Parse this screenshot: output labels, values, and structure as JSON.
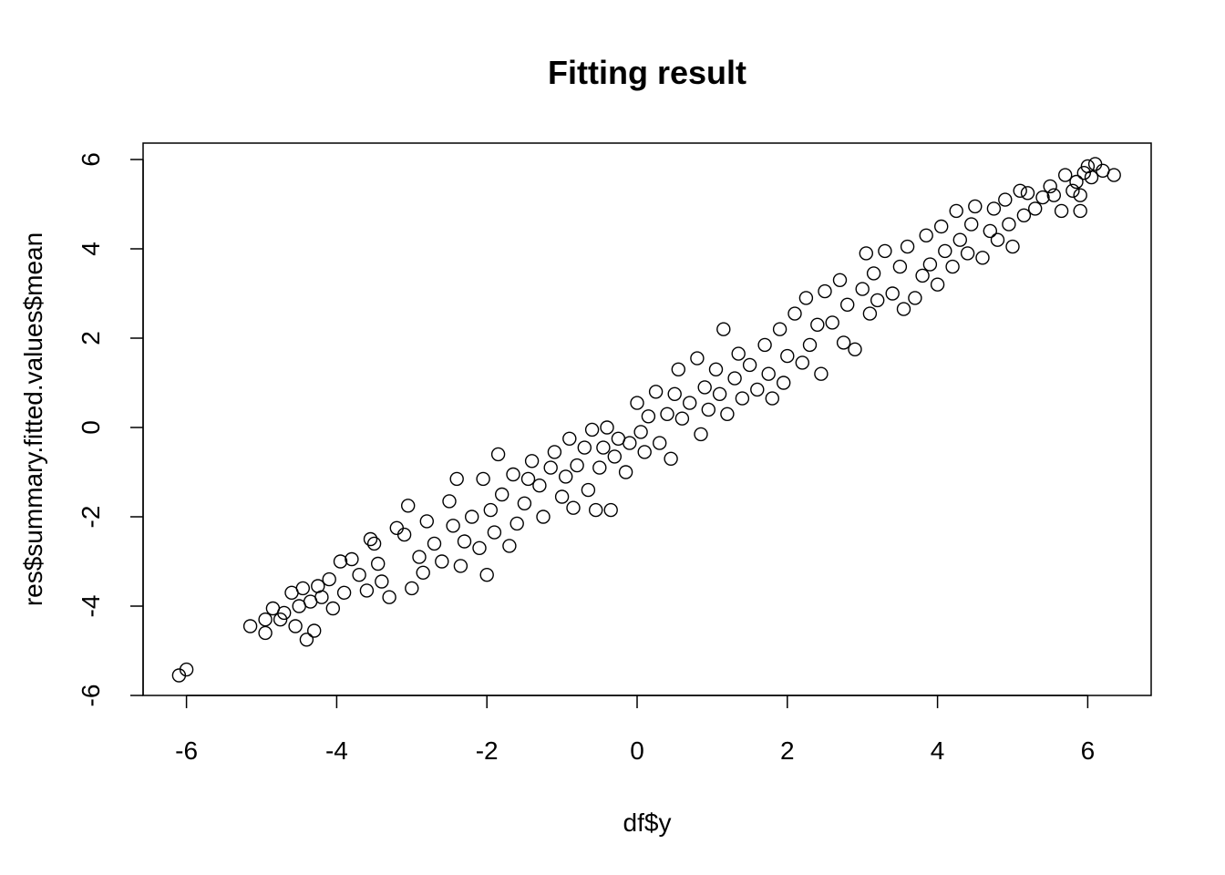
{
  "chart_data": {
    "type": "scatter",
    "title": "Fitting result",
    "xlabel": "df$y",
    "ylabel": "res$summary.fitted.values$mean",
    "xlim": [
      -6.5,
      6.9
    ],
    "ylim": [
      -6.0,
      6.4
    ],
    "xticks": [
      -6,
      -4,
      -2,
      0,
      2,
      4,
      6
    ],
    "yticks": [
      -6,
      -4,
      -2,
      0,
      2,
      4,
      6
    ],
    "xtick_labels": [
      "-6",
      "-4",
      "-2",
      "0",
      "2",
      "4",
      "6"
    ],
    "ytick_labels": [
      "-6",
      "-4",
      "-2",
      "0",
      "2",
      "4",
      "6"
    ],
    "grid": false,
    "legend": "none",
    "marker": "open-circle",
    "color": "#000000",
    "series": [
      {
        "points": [
          [
            -6.1,
            -5.55
          ],
          [
            -6.0,
            -5.42
          ],
          [
            -5.15,
            -4.45
          ],
          [
            -4.95,
            -4.6
          ],
          [
            -4.95,
            -4.3
          ],
          [
            -4.85,
            -4.05
          ],
          [
            -4.75,
            -4.3
          ],
          [
            -4.7,
            -4.15
          ],
          [
            -4.6,
            -3.7
          ],
          [
            -4.55,
            -4.45
          ],
          [
            -4.5,
            -4.0
          ],
          [
            -4.45,
            -3.6
          ],
          [
            -4.4,
            -4.75
          ],
          [
            -4.35,
            -3.9
          ],
          [
            -4.3,
            -4.55
          ],
          [
            -4.25,
            -3.55
          ],
          [
            -4.2,
            -3.8
          ],
          [
            -4.1,
            -3.4
          ],
          [
            -4.05,
            -4.05
          ],
          [
            -3.95,
            -3.0
          ],
          [
            -3.9,
            -3.7
          ],
          [
            -3.8,
            -2.95
          ],
          [
            -3.7,
            -3.3
          ],
          [
            -3.6,
            -3.65
          ],
          [
            -3.55,
            -2.5
          ],
          [
            -3.5,
            -2.6
          ],
          [
            -3.45,
            -3.05
          ],
          [
            -3.4,
            -3.45
          ],
          [
            -3.3,
            -3.8
          ],
          [
            -3.2,
            -2.25
          ],
          [
            -3.1,
            -2.4
          ],
          [
            -3.05,
            -1.75
          ],
          [
            -3.0,
            -3.6
          ],
          [
            -2.9,
            -2.9
          ],
          [
            -2.85,
            -3.25
          ],
          [
            -2.8,
            -2.1
          ],
          [
            -2.7,
            -2.6
          ],
          [
            -2.6,
            -3.0
          ],
          [
            -2.5,
            -1.65
          ],
          [
            -2.45,
            -2.2
          ],
          [
            -2.4,
            -1.15
          ],
          [
            -2.35,
            -3.1
          ],
          [
            -2.3,
            -2.55
          ],
          [
            -2.2,
            -2.0
          ],
          [
            -2.1,
            -2.7
          ],
          [
            -2.05,
            -1.15
          ],
          [
            -2.0,
            -3.3
          ],
          [
            -1.95,
            -1.85
          ],
          [
            -1.9,
            -2.35
          ],
          [
            -1.85,
            -0.6
          ],
          [
            -1.8,
            -1.5
          ],
          [
            -1.7,
            -2.65
          ],
          [
            -1.65,
            -1.05
          ],
          [
            -1.6,
            -2.15
          ],
          [
            -1.5,
            -1.7
          ],
          [
            -1.45,
            -1.15
          ],
          [
            -1.4,
            -0.75
          ],
          [
            -1.3,
            -1.3
          ],
          [
            -1.25,
            -2.0
          ],
          [
            -1.15,
            -0.9
          ],
          [
            -1.1,
            -0.55
          ],
          [
            -1.0,
            -1.55
          ],
          [
            -0.95,
            -1.1
          ],
          [
            -0.9,
            -0.25
          ],
          [
            -0.85,
            -1.8
          ],
          [
            -0.8,
            -0.85
          ],
          [
            -0.7,
            -0.45
          ],
          [
            -0.65,
            -1.4
          ],
          [
            -0.6,
            -0.05
          ],
          [
            -0.55,
            -1.85
          ],
          [
            -0.5,
            -0.9
          ],
          [
            -0.45,
            -0.45
          ],
          [
            -0.4,
            -0.0
          ],
          [
            -0.35,
            -1.85
          ],
          [
            -0.3,
            -0.65
          ],
          [
            -0.25,
            -0.25
          ],
          [
            -0.15,
            -1.0
          ],
          [
            -0.1,
            -0.35
          ],
          [
            0.0,
            0.55
          ],
          [
            0.05,
            -0.1
          ],
          [
            0.1,
            -0.55
          ],
          [
            0.15,
            0.25
          ],
          [
            0.25,
            0.8
          ],
          [
            0.3,
            -0.35
          ],
          [
            0.4,
            0.3
          ],
          [
            0.45,
            -0.7
          ],
          [
            0.5,
            0.75
          ],
          [
            0.55,
            1.3
          ],
          [
            0.6,
            0.2
          ],
          [
            0.7,
            0.55
          ],
          [
            0.8,
            1.55
          ],
          [
            0.85,
            -0.15
          ],
          [
            0.9,
            0.9
          ],
          [
            0.95,
            0.4
          ],
          [
            1.05,
            1.3
          ],
          [
            1.1,
            0.75
          ],
          [
            1.15,
            2.2
          ],
          [
            1.2,
            0.3
          ],
          [
            1.3,
            1.1
          ],
          [
            1.35,
            1.65
          ],
          [
            1.4,
            0.65
          ],
          [
            1.5,
            1.4
          ],
          [
            1.6,
            0.85
          ],
          [
            1.7,
            1.85
          ],
          [
            1.75,
            1.2
          ],
          [
            1.8,
            0.65
          ],
          [
            1.9,
            2.2
          ],
          [
            1.95,
            1.0
          ],
          [
            2.0,
            1.6
          ],
          [
            2.1,
            2.55
          ],
          [
            2.2,
            1.45
          ],
          [
            2.25,
            2.9
          ],
          [
            2.3,
            1.85
          ],
          [
            2.4,
            2.3
          ],
          [
            2.45,
            1.2
          ],
          [
            2.5,
            3.05
          ],
          [
            2.6,
            2.35
          ],
          [
            2.7,
            3.3
          ],
          [
            2.75,
            1.9
          ],
          [
            2.8,
            2.75
          ],
          [
            2.9,
            1.75
          ],
          [
            3.0,
            3.1
          ],
          [
            3.05,
            3.9
          ],
          [
            3.1,
            2.55
          ],
          [
            3.15,
            3.45
          ],
          [
            3.2,
            2.85
          ],
          [
            3.3,
            3.95
          ],
          [
            3.4,
            3.0
          ],
          [
            3.5,
            3.6
          ],
          [
            3.55,
            2.65
          ],
          [
            3.6,
            4.05
          ],
          [
            3.7,
            2.9
          ],
          [
            3.8,
            3.4
          ],
          [
            3.85,
            4.3
          ],
          [
            3.9,
            3.65
          ],
          [
            4.0,
            3.2
          ],
          [
            4.05,
            4.5
          ],
          [
            4.1,
            3.95
          ],
          [
            4.2,
            3.6
          ],
          [
            4.25,
            4.85
          ],
          [
            4.3,
            4.2
          ],
          [
            4.4,
            3.9
          ],
          [
            4.45,
            4.55
          ],
          [
            4.5,
            4.95
          ],
          [
            4.6,
            3.8
          ],
          [
            4.7,
            4.4
          ],
          [
            4.75,
            4.9
          ],
          [
            4.8,
            4.2
          ],
          [
            4.9,
            5.1
          ],
          [
            4.95,
            4.55
          ],
          [
            5.0,
            4.05
          ],
          [
            5.1,
            5.3
          ],
          [
            5.15,
            4.75
          ],
          [
            5.2,
            5.25
          ],
          [
            5.3,
            4.9
          ],
          [
            5.4,
            5.15
          ],
          [
            5.5,
            5.4
          ],
          [
            5.55,
            5.2
          ],
          [
            5.65,
            4.85
          ],
          [
            5.7,
            5.65
          ],
          [
            5.8,
            5.3
          ],
          [
            5.85,
            5.5
          ],
          [
            5.9,
            4.85
          ],
          [
            5.9,
            5.2
          ],
          [
            5.95,
            5.7
          ],
          [
            6.0,
            5.85
          ],
          [
            6.05,
            5.6
          ],
          [
            6.1,
            5.9
          ],
          [
            6.2,
            5.75
          ],
          [
            6.35,
            5.65
          ]
        ]
      }
    ]
  }
}
